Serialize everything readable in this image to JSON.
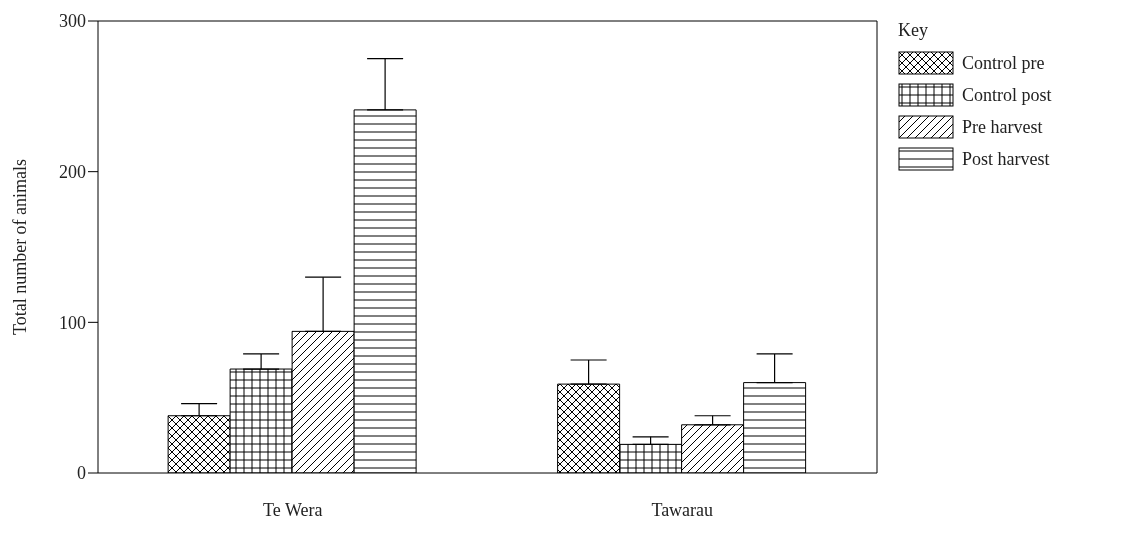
{
  "chart_data": {
    "type": "bar",
    "ylabel": "Total number of animals",
    "legend_title": "Key",
    "categories": [
      "Te Wera",
      "Tawarau"
    ],
    "series": [
      {
        "name": "Control pre",
        "color": "#000000",
        "values": [
          38,
          59
        ],
        "errors": [
          [
            38,
            46
          ],
          [
            59,
            75
          ]
        ]
      },
      {
        "name": "Control post",
        "color": "#000000",
        "values": [
          69,
          19
        ],
        "errors": [
          [
            69,
            79
          ],
          [
            19,
            24
          ]
        ]
      },
      {
        "name": "Pre harvest",
        "color": "#000000",
        "values": [
          94,
          32
        ],
        "errors": [
          [
            94,
            130
          ],
          [
            32,
            38
          ]
        ]
      },
      {
        "name": "Post harvest",
        "color": "#000000",
        "values": [
          241,
          60
        ],
        "errors": [
          [
            241,
            275
          ],
          [
            60,
            79
          ]
        ]
      }
    ],
    "ylim": [
      0,
      300
    ],
    "yticks": [
      0,
      100,
      200,
      300
    ],
    "grid": false,
    "legend": "top right"
  }
}
